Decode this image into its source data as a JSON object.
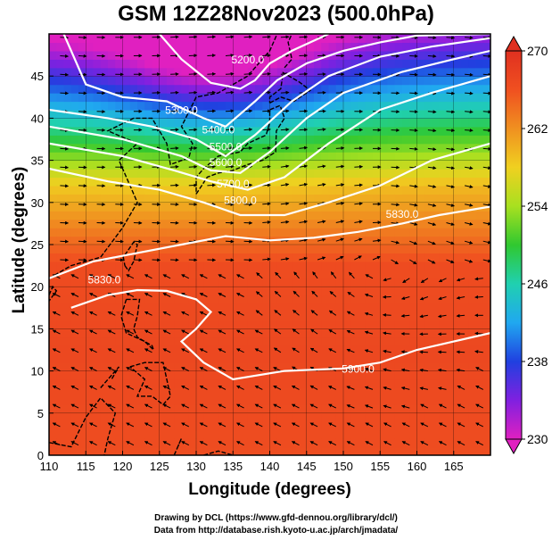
{
  "title": "GSM 12Z28Nov2023 (500.0hPa)",
  "xlabel": "Longitude (degrees)",
  "ylabel": "Latitude  (degrees)",
  "credit_line1": "Drawing by DCL (https://www.gfd-dennou.org/library/dcl/)",
  "credit_line2": "Data from http://database.rish.kyoto-u.ac.jp/arch/jmadata/",
  "chart_data": {
    "type": "heatmap",
    "variable_description": "temperature shading with geopotential height contours and wind arrows",
    "xlim": [
      110,
      170
    ],
    "ylim": [
      0,
      50
    ],
    "x_ticks": [
      "110",
      "115",
      "120",
      "125",
      "130",
      "135",
      "140",
      "145",
      "150",
      "155",
      "160",
      "165"
    ],
    "y_ticks": [
      "0",
      "5",
      "10",
      "15",
      "20",
      "25",
      "30",
      "35",
      "40",
      "45"
    ],
    "colorbar": {
      "min": 230,
      "max": 270,
      "tick_labels": [
        "230",
        "238",
        "246",
        "254",
        "262",
        "270"
      ],
      "colors": [
        "#e020c0",
        "#8020e0",
        "#2040e0",
        "#20a8f0",
        "#20d0b0",
        "#30c830",
        "#a8e020",
        "#f0d020",
        "#f09020",
        "#f05020",
        "#e03020"
      ]
    },
    "contour_labels": [
      {
        "text": "5200.0",
        "value": 5200
      },
      {
        "text": "5300.0",
        "value": 5300
      },
      {
        "text": "5400.0",
        "value": 5400
      },
      {
        "text": "5500.0",
        "value": 5500
      },
      {
        "text": "5600.0",
        "value": 5600
      },
      {
        "text": "5700.0",
        "value": 5700
      },
      {
        "text": "5800.0",
        "value": 5800
      },
      {
        "text": "5830.0",
        "value": 5830
      },
      {
        "text": "5900.0",
        "value": 5900
      }
    ],
    "grid": true
  }
}
